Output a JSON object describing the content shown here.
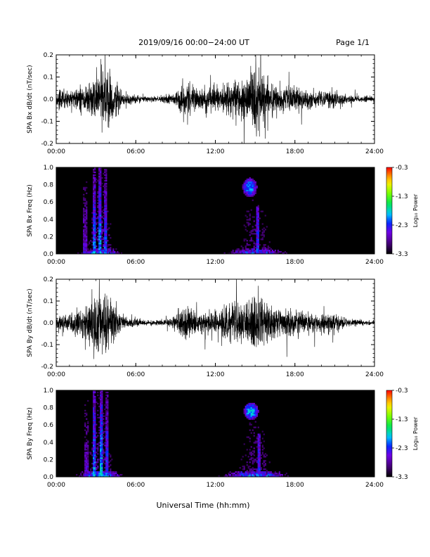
{
  "header": {
    "title": "2019/09/16  00:00−24:00 UT",
    "page": "Page 1/1"
  },
  "footer": {
    "xlabel": "Universal Time (hh:mm)"
  },
  "chart_data": [
    {
      "type": "line",
      "ylabel": "SPA Bx dB/dt (nT/sec)",
      "xlim": [
        0,
        24
      ],
      "ylim": [
        -0.2,
        0.2
      ],
      "xticks": [
        "00:00",
        "06:00",
        "12:00",
        "18:00",
        "24:00"
      ],
      "yticks": [
        "-0.2",
        "-0.1",
        "0.0",
        "0.1",
        "0.2"
      ],
      "series": [
        {
          "x_hours": [
            0,
            1,
            2,
            2.5,
            3,
            3.5,
            4,
            4.5,
            5,
            6,
            7,
            8,
            9,
            9.5,
            10,
            11,
            12,
            13,
            14,
            14.5,
            15,
            15.5,
            16,
            17,
            18,
            19,
            20,
            21,
            21.5,
            22,
            23,
            24
          ],
          "amplitude": [
            0.07,
            0.08,
            0.1,
            0.16,
            0.22,
            0.25,
            0.22,
            0.15,
            0.06,
            0.03,
            0.02,
            0.025,
            0.05,
            0.12,
            0.1,
            0.08,
            0.09,
            0.12,
            0.15,
            0.22,
            0.25,
            0.22,
            0.14,
            0.09,
            0.1,
            0.07,
            0.06,
            0.07,
            0.05,
            0.03,
            0.025,
            0.02
          ]
        }
      ]
    },
    {
      "type": "heatmap",
      "ylabel": "SPA Bx Freq (Hz)",
      "xlim": [
        0,
        24
      ],
      "ylim": [
        0,
        1.0
      ],
      "xticks": [
        "00:00",
        "06:00",
        "12:00",
        "18:00",
        "24:00"
      ],
      "yticks": [
        "0.0",
        "0.2",
        "0.4",
        "0.6",
        "0.8",
        "1.0"
      ],
      "colorbar": {
        "label": "Log₁₀ Power",
        "range": [
          -3.3,
          -0.3
        ],
        "ticks": [
          "-0.3",
          "-1.3",
          "-2.3",
          "-3.3"
        ]
      },
      "features": [
        {
          "kind": "vertical_streak",
          "center_hour": 2.2,
          "width_hours": 0.15,
          "fmax": 0.85,
          "level": -2.6
        },
        {
          "kind": "vertical_streak",
          "center_hour": 2.9,
          "width_hours": 0.12,
          "fmax": 1.0,
          "level": -2.1
        },
        {
          "kind": "vertical_streak",
          "center_hour": 3.3,
          "width_hours": 0.12,
          "fmax": 1.0,
          "level": -2.0
        },
        {
          "kind": "vertical_streak",
          "center_hour": 3.7,
          "width_hours": 0.12,
          "fmax": 1.0,
          "level": -2.2
        },
        {
          "kind": "vertical_streak",
          "center_hour": 15.2,
          "width_hours": 0.1,
          "fmax": 0.55,
          "level": -2.3
        },
        {
          "kind": "blob",
          "center_hour": 14.6,
          "center_freq": 0.77,
          "width_hours": 0.55,
          "height_freq": 0.22,
          "level": -2.0
        },
        {
          "kind": "low_band",
          "fmax": 0.06,
          "level": -1.8
        }
      ]
    },
    {
      "type": "line",
      "ylabel": "SPA By dB/dt (nT/sec)",
      "xlim": [
        0,
        24
      ],
      "ylim": [
        -0.2,
        0.2
      ],
      "xticks": [
        "00:00",
        "06:00",
        "12:00",
        "18:00",
        "24:00"
      ],
      "yticks": [
        "-0.2",
        "-0.1",
        "0.0",
        "0.1",
        "0.2"
      ],
      "series": [
        {
          "x_hours": [
            0,
            1,
            2,
            2.5,
            3,
            3.5,
            4,
            4.5,
            5,
            6,
            7,
            8,
            9,
            9.5,
            10,
            11,
            12,
            13,
            14,
            14.5,
            15,
            15.5,
            16,
            17,
            18,
            19,
            20,
            21,
            21.5,
            22,
            23,
            24
          ],
          "amplitude": [
            0.06,
            0.08,
            0.11,
            0.18,
            0.25,
            0.25,
            0.22,
            0.14,
            0.05,
            0.03,
            0.02,
            0.025,
            0.06,
            0.13,
            0.11,
            0.09,
            0.1,
            0.13,
            0.16,
            0.23,
            0.25,
            0.22,
            0.15,
            0.1,
            0.12,
            0.08,
            0.07,
            0.08,
            0.05,
            0.03,
            0.025,
            0.02
          ]
        }
      ]
    },
    {
      "type": "heatmap",
      "ylabel": "SPA By Freq (Hz)",
      "xlim": [
        0,
        24
      ],
      "ylim": [
        0,
        1.0
      ],
      "xticks": [
        "00:00",
        "06:00",
        "12:00",
        "18:00",
        "24:00"
      ],
      "yticks": [
        "0.0",
        "0.2",
        "0.4",
        "0.6",
        "0.8",
        "1.0"
      ],
      "colorbar": {
        "label": "Log₁₀ Power",
        "range": [
          -3.3,
          -0.3
        ],
        "ticks": [
          "-0.3",
          "-1.3",
          "-2.3",
          "-3.3"
        ]
      },
      "features": [
        {
          "kind": "vertical_streak",
          "center_hour": 2.3,
          "width_hours": 0.15,
          "fmax": 0.9,
          "level": -2.6
        },
        {
          "kind": "vertical_streak",
          "center_hour": 2.9,
          "width_hours": 0.12,
          "fmax": 1.0,
          "level": -2.0
        },
        {
          "kind": "vertical_streak",
          "center_hour": 3.4,
          "width_hours": 0.12,
          "fmax": 1.0,
          "level": -1.9
        },
        {
          "kind": "vertical_streak",
          "center_hour": 3.8,
          "width_hours": 0.12,
          "fmax": 1.0,
          "level": -2.2
        },
        {
          "kind": "vertical_streak",
          "center_hour": 15.3,
          "width_hours": 0.1,
          "fmax": 0.5,
          "level": -2.3
        },
        {
          "kind": "blob",
          "center_hour": 14.7,
          "center_freq": 0.76,
          "width_hours": 0.55,
          "height_freq": 0.2,
          "level": -1.9
        },
        {
          "kind": "low_band",
          "fmax": 0.07,
          "level": -1.7
        }
      ]
    }
  ]
}
